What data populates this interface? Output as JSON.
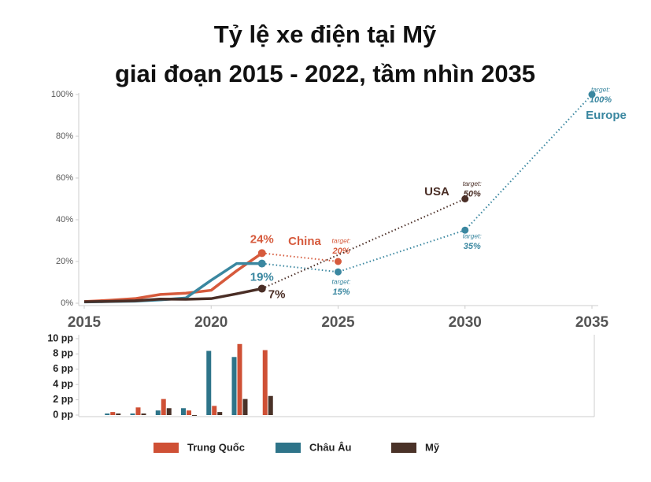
{
  "chart_data": [
    {
      "type": "line",
      "title": "Tỷ lệ xe điện tại Mỹ",
      "subtitle": "giai đoạn 2015 - 2022, tầm nhìn 2035",
      "target_label": "target:",
      "xlim": [
        2015,
        2035
      ],
      "xticks": [
        2015,
        2020,
        2025,
        2030,
        2035
      ],
      "ylim": [
        0,
        100
      ],
      "yticks": [
        {
          "value": 0,
          "label": "0%"
        },
        {
          "value": 20,
          "label": "20%"
        },
        {
          "value": 40,
          "label": "40%"
        },
        {
          "value": 60,
          "label": "60%"
        },
        {
          "value": 80,
          "label": "80%"
        },
        {
          "value": 100,
          "label": "100%"
        }
      ],
      "series": [
        {
          "name": "China",
          "color": "#d65a3c",
          "x": [
            2015,
            2016,
            2017,
            2018,
            2019,
            2020,
            2021,
            2022
          ],
          "values": [
            0.8,
            1.4,
            2.2,
            4.2,
            4.8,
            6.2,
            15.5,
            24
          ],
          "value_labels": [
            null,
            null,
            null,
            null,
            null,
            null,
            null,
            "24%"
          ],
          "target_x": [
            2025
          ],
          "target_values": [
            20
          ],
          "target_value_labels": [
            "20%"
          ]
        },
        {
          "name": "Europe",
          "color": "#3a87a0",
          "x": [
            2015,
            2016,
            2017,
            2018,
            2019,
            2020,
            2021,
            2022
          ],
          "values": [
            0.6,
            0.8,
            1.0,
            1.6,
            2.5,
            11,
            19,
            19
          ],
          "value_labels": [
            null,
            null,
            null,
            null,
            null,
            null,
            null,
            "19%"
          ],
          "target_x": [
            2025,
            2030,
            2035
          ],
          "target_values": [
            15,
            35,
            100
          ],
          "target_value_labels": [
            "15%",
            "35%",
            "100%"
          ]
        },
        {
          "name": "USA",
          "color": "#4a2e26",
          "x": [
            2015,
            2016,
            2017,
            2018,
            2019,
            2020,
            2021,
            2022
          ],
          "values": [
            0.7,
            0.9,
            1.2,
            2.0,
            1.9,
            2.2,
            4.5,
            7
          ],
          "value_labels": [
            null,
            null,
            null,
            null,
            null,
            null,
            null,
            "7%"
          ],
          "target_x": [
            2030
          ],
          "target_values": [
            50
          ],
          "target_value_labels": [
            "50%"
          ]
        }
      ]
    },
    {
      "type": "bar",
      "xlim": [
        2015,
        2035
      ],
      "ylim": [
        0,
        10
      ],
      "yticks": [
        {
          "value": 0,
          "label": "0 pp"
        },
        {
          "value": 2,
          "label": "2 pp"
        },
        {
          "value": 4,
          "label": "4 pp"
        },
        {
          "value": 6,
          "label": "6 pp"
        },
        {
          "value": 8,
          "label": "8 pp"
        },
        {
          "value": 10,
          "label": "10 pp"
        }
      ],
      "x": [
        2016,
        2017,
        2018,
        2019,
        2020,
        2021,
        2022
      ],
      "legend": "bottom",
      "series": [
        {
          "name": "Trung Quốc",
          "color": "#cf5035",
          "values": [
            0.4,
            1.0,
            2.1,
            0.6,
            1.2,
            9.3,
            8.5
          ]
        },
        {
          "name": "Châu Âu",
          "color": "#2e7489",
          "values": [
            0.2,
            0.2,
            0.6,
            0.9,
            8.4,
            7.6,
            0
          ]
        },
        {
          "name": "Mỹ",
          "color": "#4a3228",
          "values": [
            0.2,
            0.2,
            0.9,
            -0.1,
            0.4,
            2.1,
            2.5
          ]
        }
      ]
    }
  ]
}
